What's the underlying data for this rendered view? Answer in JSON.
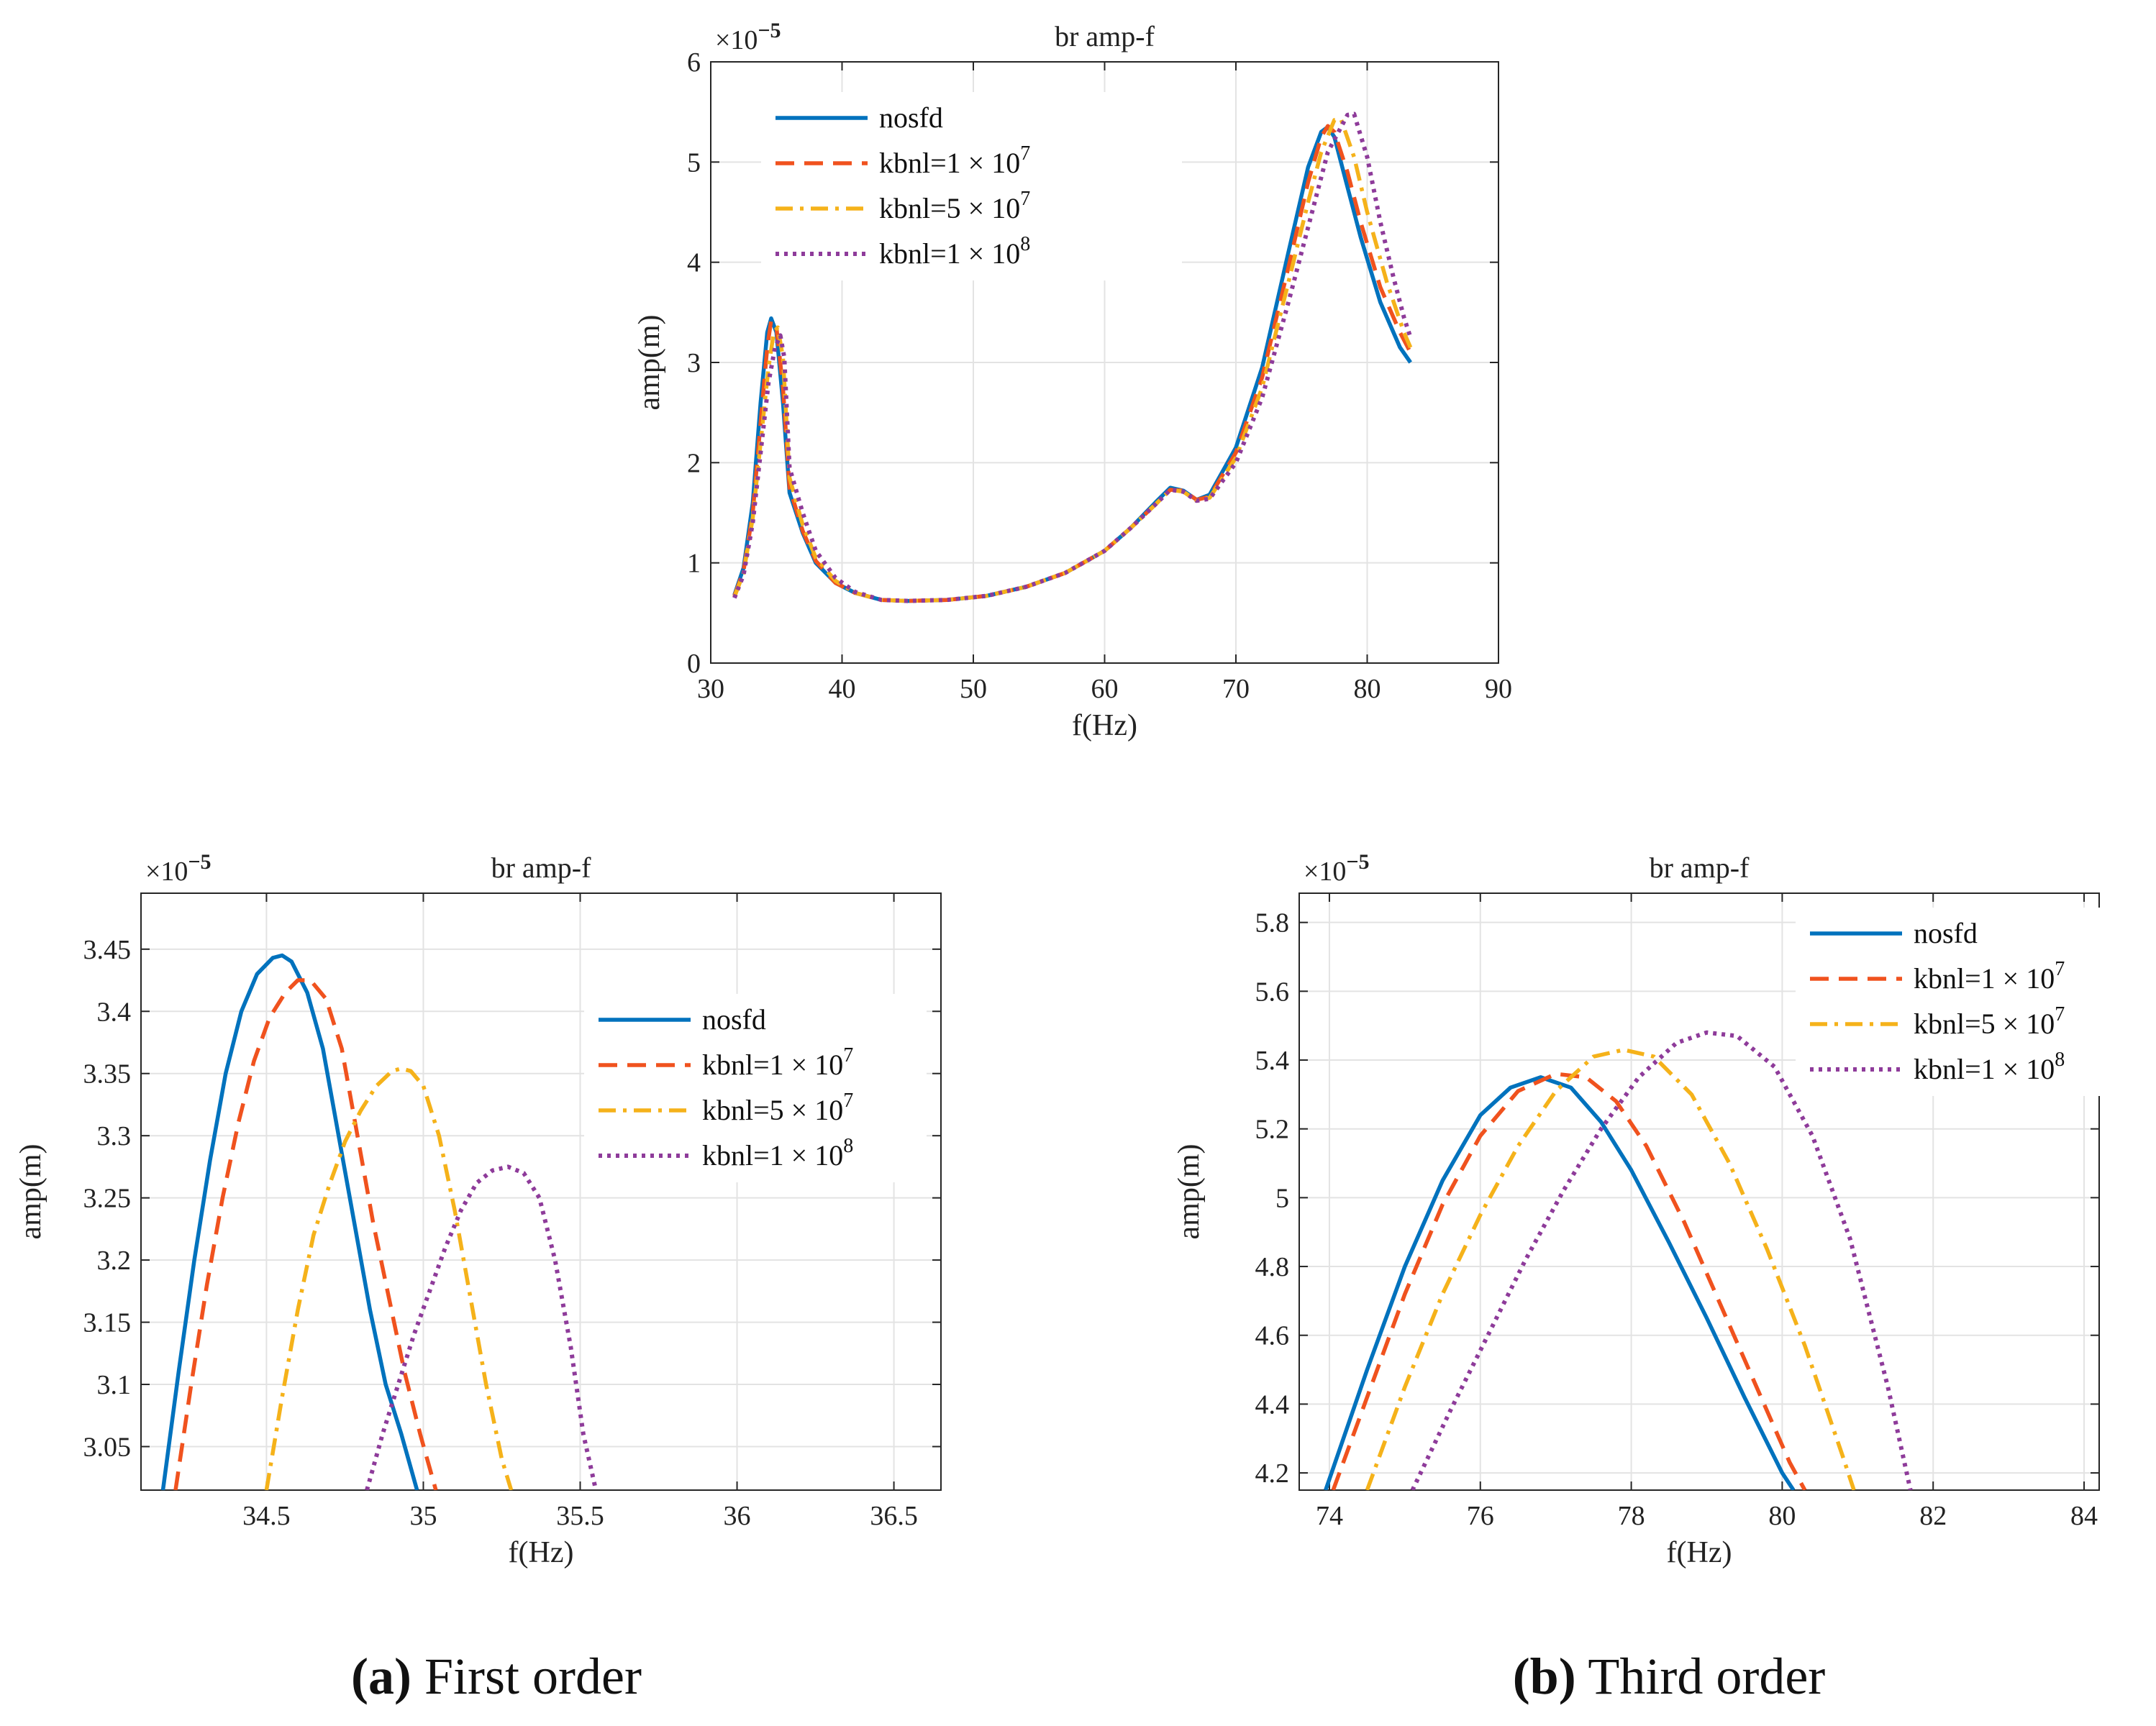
{
  "colors": {
    "nosfd": "#0072BD",
    "k1e7": "#F0521E",
    "k5e7": "#F5B21A",
    "k1e8": "#8E3B9A"
  },
  "styles": {
    "nosfd": "solid",
    "k1e7": "dashed",
    "k5e7": "dashdot",
    "k1e8": "dotted"
  },
  "legend_labels": {
    "nosfd": "nosfd",
    "k1e7": "kbnl=1 × 10",
    "k1e7_exp": "7",
    "k5e7": "kbnl=5 × 10",
    "k5e7_exp": "7",
    "k1e8": "kbnl=1 × 10",
    "k1e8_exp": "8"
  },
  "captions": {
    "a_letter": "(a)",
    "a_text": " First order",
    "b_letter": "(b)",
    "b_text": " Third order"
  },
  "chart_data": [
    {
      "id": "top",
      "type": "line",
      "title": "br amp-f",
      "xlabel": "f(Hz)",
      "ylabel": "amp(m)",
      "multiplier_base": "×10",
      "multiplier_exp": "−5",
      "xlim": [
        30,
        90
      ],
      "ylim": [
        0,
        6
      ],
      "xticks": [
        30,
        40,
        50,
        60,
        70,
        80,
        90
      ],
      "yticks": [
        0,
        1,
        2,
        3,
        4,
        5,
        6
      ],
      "xtick_labels": [
        "30",
        "40",
        "50",
        "60",
        "70",
        "80",
        "90"
      ],
      "ytick_labels": [
        "0",
        "1",
        "2",
        "3",
        "4",
        "5",
        "6"
      ],
      "legend_position": "top-left",
      "series": [
        {
          "key": "nosfd",
          "name": "nosfd",
          "x": [
            31.8,
            32.5,
            33.2,
            33.8,
            34.3,
            34.6,
            35.0,
            35.5,
            36.0,
            37.0,
            38.0,
            39.5,
            41,
            43,
            45,
            48,
            51,
            54,
            57,
            60,
            62,
            64,
            65,
            66,
            67,
            68,
            70,
            72,
            74,
            75.5,
            76.5,
            77,
            77.5,
            78.5,
            79.5,
            81,
            82.5,
            83.3
          ],
          "y": [
            0.68,
            0.95,
            1.6,
            2.6,
            3.3,
            3.44,
            3.3,
            2.6,
            1.7,
            1.3,
            1.0,
            0.8,
            0.7,
            0.63,
            0.62,
            0.63,
            0.67,
            0.76,
            0.9,
            1.12,
            1.35,
            1.62,
            1.75,
            1.72,
            1.63,
            1.68,
            2.15,
            2.95,
            4.1,
            4.95,
            5.3,
            5.35,
            5.25,
            4.75,
            4.25,
            3.6,
            3.15,
            3.0
          ]
        },
        {
          "key": "k1e7",
          "name": "kbnl=1 × 10^7",
          "x": [
            31.8,
            32.5,
            33.2,
            33.8,
            34.3,
            34.6,
            35.0,
            35.5,
            36.0,
            37.0,
            38.0,
            39.5,
            41,
            43,
            45,
            48,
            51,
            54,
            57,
            60,
            62,
            64,
            65,
            66,
            67,
            68,
            70,
            72,
            74,
            75.5,
            76.5,
            77,
            77.5,
            78.5,
            79.5,
            81,
            82.5,
            83.3
          ],
          "y": [
            0.67,
            0.92,
            1.5,
            2.4,
            3.15,
            3.42,
            3.35,
            2.75,
            1.75,
            1.32,
            1.02,
            0.8,
            0.7,
            0.63,
            0.62,
            0.63,
            0.67,
            0.76,
            0.9,
            1.12,
            1.35,
            1.6,
            1.73,
            1.72,
            1.63,
            1.66,
            2.1,
            2.85,
            3.95,
            4.8,
            5.25,
            5.36,
            5.3,
            4.9,
            4.4,
            3.75,
            3.3,
            3.1
          ]
        },
        {
          "key": "k5e7",
          "name": "kbnl=5 × 10^7",
          "x": [
            31.8,
            32.5,
            33.2,
            33.8,
            34.4,
            34.8,
            35.1,
            35.5,
            36.0,
            37.0,
            38.0,
            39.5,
            41,
            43,
            45,
            48,
            51,
            54,
            57,
            60,
            62,
            64,
            65,
            66,
            67,
            68,
            70,
            72,
            74,
            75.5,
            76.5,
            77.5,
            78,
            79,
            80,
            81.5,
            82.8,
            83.3
          ],
          "y": [
            0.66,
            0.9,
            1.45,
            2.2,
            2.95,
            3.3,
            3.35,
            3.05,
            1.85,
            1.38,
            1.05,
            0.82,
            0.7,
            0.63,
            0.62,
            0.63,
            0.67,
            0.76,
            0.9,
            1.12,
            1.35,
            1.6,
            1.73,
            1.71,
            1.62,
            1.65,
            2.05,
            2.75,
            3.8,
            4.6,
            5.1,
            5.42,
            5.43,
            5.05,
            4.5,
            3.8,
            3.3,
            3.15
          ]
        },
        {
          "key": "k1e8",
          "name": "kbnl=1 × 10^8",
          "x": [
            31.8,
            32.5,
            33.2,
            33.8,
            34.4,
            34.9,
            35.3,
            35.6,
            36.0,
            37.0,
            38.0,
            39.5,
            41,
            43,
            45,
            48,
            51,
            54,
            57,
            60,
            62,
            64,
            65,
            66,
            67,
            68,
            70,
            72,
            74,
            75.5,
            77,
            78.5,
            79,
            80,
            81,
            82,
            82.8,
            83.3
          ],
          "y": [
            0.65,
            0.88,
            1.4,
            2.1,
            2.8,
            3.15,
            3.27,
            3.05,
            1.95,
            1.5,
            1.12,
            0.85,
            0.71,
            0.63,
            0.62,
            0.63,
            0.67,
            0.76,
            0.9,
            1.12,
            1.35,
            1.6,
            1.73,
            1.71,
            1.62,
            1.64,
            2.0,
            2.65,
            3.6,
            4.35,
            5.1,
            5.47,
            5.48,
            5.05,
            4.4,
            3.85,
            3.45,
            3.25
          ]
        }
      ]
    },
    {
      "id": "a",
      "type": "line",
      "title": "br amp-f",
      "xlabel": "f(Hz)",
      "ylabel": "amp(m)",
      "multiplier_base": "×10",
      "multiplier_exp": "−5",
      "xlim": [
        34.1,
        36.65
      ],
      "ylim": [
        3.015,
        3.495
      ],
      "xticks": [
        34.5,
        35,
        35.5,
        36,
        36.5
      ],
      "yticks": [
        3.05,
        3.1,
        3.15,
        3.2,
        3.25,
        3.3,
        3.35,
        3.4,
        3.45
      ],
      "xtick_labels": [
        "34.5",
        "35",
        "35.5",
        "36",
        "36.5"
      ],
      "ytick_labels": [
        "3.05",
        "3.1",
        "3.15",
        "3.2",
        "3.25",
        "3.3",
        "3.35",
        "3.4",
        "3.45"
      ],
      "legend_position": "right",
      "series": [
        {
          "key": "nosfd",
          "name": "nosfd",
          "x": [
            34.17,
            34.22,
            34.27,
            34.32,
            34.37,
            34.42,
            34.47,
            34.52,
            34.55,
            34.58,
            34.63,
            34.68,
            34.73,
            34.78,
            34.83,
            34.88,
            34.93,
            34.98
          ],
          "y": [
            3.015,
            3.11,
            3.2,
            3.28,
            3.35,
            3.4,
            3.43,
            3.443,
            3.445,
            3.44,
            3.415,
            3.37,
            3.3,
            3.23,
            3.16,
            3.1,
            3.06,
            3.015
          ]
        },
        {
          "key": "k1e7",
          "name": "kbnl=1 × 10^7",
          "x": [
            34.21,
            34.26,
            34.31,
            34.36,
            34.41,
            34.46,
            34.51,
            34.56,
            34.6,
            34.64,
            34.69,
            34.74,
            34.79,
            34.84,
            34.89,
            34.94,
            34.99,
            35.04
          ],
          "y": [
            3.015,
            3.1,
            3.18,
            3.25,
            3.31,
            3.36,
            3.395,
            3.415,
            3.425,
            3.425,
            3.41,
            3.37,
            3.3,
            3.23,
            3.17,
            3.11,
            3.06,
            3.015
          ]
        },
        {
          "key": "k5e7",
          "name": "kbnl=5 × 10^7",
          "x": [
            34.5,
            34.55,
            34.6,
            34.65,
            34.7,
            34.75,
            34.8,
            34.85,
            34.9,
            34.93,
            34.96,
            35.0,
            35.05,
            35.1,
            35.15,
            35.2,
            35.25,
            35.28
          ],
          "y": [
            3.015,
            3.09,
            3.16,
            3.22,
            3.26,
            3.295,
            3.32,
            3.34,
            3.352,
            3.354,
            3.352,
            3.34,
            3.3,
            3.24,
            3.17,
            3.1,
            3.04,
            3.015
          ]
        },
        {
          "key": "k1e8",
          "name": "kbnl=1 × 10^8",
          "x": [
            34.82,
            34.87,
            34.92,
            34.97,
            35.02,
            35.07,
            35.12,
            35.17,
            35.22,
            35.27,
            35.32,
            35.37,
            35.42,
            35.47,
            35.51,
            35.55
          ],
          "y": [
            3.015,
            3.06,
            3.1,
            3.14,
            3.175,
            3.21,
            3.24,
            3.262,
            3.272,
            3.275,
            3.27,
            3.25,
            3.2,
            3.13,
            3.06,
            3.015
          ]
        }
      ]
    },
    {
      "id": "b",
      "type": "line",
      "title": "br amp-f",
      "xlabel": "f(Hz)",
      "ylabel": "amp(m)",
      "multiplier_base": "×10",
      "multiplier_exp": "−5",
      "xlim": [
        73.6,
        84.2
      ],
      "ylim": [
        4.15,
        5.885
      ],
      "xticks": [
        74,
        76,
        78,
        80,
        82,
        84
      ],
      "yticks": [
        4.2,
        4.4,
        4.6,
        4.8,
        5.0,
        5.2,
        5.4,
        5.6,
        5.8
      ],
      "xtick_labels": [
        "74",
        "76",
        "78",
        "80",
        "82",
        "84"
      ],
      "ytick_labels": [
        "4.2",
        "4.4",
        "4.6",
        "4.8",
        "5",
        "5.2",
        "5.4",
        "5.6",
        "5.8"
      ],
      "legend_position": "top-right",
      "series": [
        {
          "key": "nosfd",
          "name": "nosfd",
          "x": [
            73.95,
            74.5,
            75,
            75.5,
            76,
            76.4,
            76.8,
            77.2,
            77.6,
            78,
            78.5,
            79,
            79.5,
            80,
            80.15
          ],
          "y": [
            4.15,
            4.5,
            4.8,
            5.05,
            5.24,
            5.32,
            5.35,
            5.32,
            5.22,
            5.08,
            4.87,
            4.65,
            4.42,
            4.2,
            4.15
          ]
        },
        {
          "key": "k1e7",
          "name": "kbnl=1 × 10^7",
          "x": [
            74.05,
            74.5,
            75,
            75.5,
            76,
            76.5,
            77,
            77.4,
            77.8,
            78.2,
            78.7,
            79.2,
            79.7,
            80.1,
            80.3
          ],
          "y": [
            4.15,
            4.42,
            4.72,
            4.98,
            5.18,
            5.31,
            5.36,
            5.35,
            5.28,
            5.15,
            4.93,
            4.68,
            4.43,
            4.23,
            4.15
          ]
        },
        {
          "key": "k5e7",
          "name": "kbnl=5 × 10^7",
          "x": [
            74.5,
            75,
            75.5,
            76,
            76.5,
            77,
            77.5,
            77.9,
            78.3,
            78.8,
            79.3,
            79.8,
            80.3,
            80.8,
            80.95
          ],
          "y": [
            4.15,
            4.45,
            4.72,
            4.95,
            5.15,
            5.31,
            5.41,
            5.43,
            5.41,
            5.3,
            5.1,
            4.85,
            4.57,
            4.25,
            4.15
          ]
        },
        {
          "key": "k1e8",
          "name": "kbnl=1 × 10^8",
          "x": [
            75.1,
            75.6,
            76.1,
            76.6,
            77.1,
            77.6,
            78.1,
            78.6,
            79.0,
            79.4,
            79.9,
            80.4,
            80.9,
            81.4,
            81.7
          ],
          "y": [
            4.15,
            4.38,
            4.6,
            4.82,
            5.02,
            5.2,
            5.35,
            5.45,
            5.48,
            5.47,
            5.38,
            5.18,
            4.88,
            4.45,
            4.15
          ]
        }
      ]
    }
  ]
}
